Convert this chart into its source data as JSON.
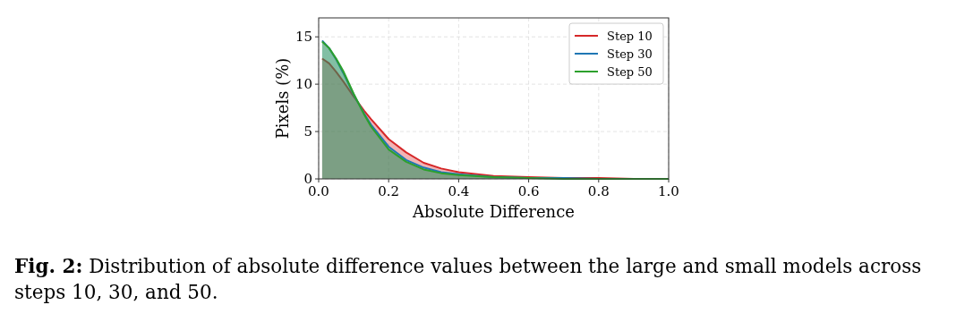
{
  "chart_data": {
    "type": "area",
    "xlabel": "Absolute Difference",
    "ylabel": "Pixels (%)",
    "x": [
      0.01,
      0.03,
      0.05,
      0.07,
      0.1,
      0.13,
      0.15,
      0.2,
      0.25,
      0.3,
      0.35,
      0.4,
      0.5,
      0.6,
      0.7,
      0.8,
      0.9,
      1.0
    ],
    "series": [
      {
        "name": "Step 10",
        "color": "#d62728",
        "values": [
          12.7,
          12.2,
          11.3,
          10.3,
          8.7,
          7.2,
          6.3,
          4.2,
          2.8,
          1.7,
          1.1,
          0.7,
          0.3,
          0.2,
          0.1,
          0.1,
          0.0,
          0.0
        ]
      },
      {
        "name": "Step 30",
        "color": "#1f77b4",
        "values": [
          14.6,
          13.8,
          12.6,
          11.2,
          8.9,
          6.9,
          5.7,
          3.4,
          2.0,
          1.2,
          0.7,
          0.5,
          0.2,
          0.1,
          0.1,
          0.0,
          0.0,
          0.0
        ]
      },
      {
        "name": "Step 50",
        "color": "#2ca02c",
        "values": [
          14.5,
          13.8,
          12.7,
          11.4,
          9.0,
          6.8,
          5.5,
          3.1,
          1.8,
          1.0,
          0.6,
          0.4,
          0.2,
          0.1,
          0.0,
          0.0,
          0.0,
          0.0
        ]
      }
    ],
    "xlim": [
      0,
      1
    ],
    "ylim": [
      0,
      17
    ],
    "xticks": [
      {
        "value": 0,
        "label": "0.0"
      },
      0.2,
      0.4,
      0.6,
      0.8,
      {
        "value": 1,
        "label": "1.0"
      }
    ],
    "yticks": [
      0,
      5,
      10,
      15
    ],
    "grid": true,
    "legend": "top right",
    "annotations": [
      "Fig. 2: Distribution of absolute difference values between the large and small models across steps 10, 30, and 50."
    ]
  }
}
